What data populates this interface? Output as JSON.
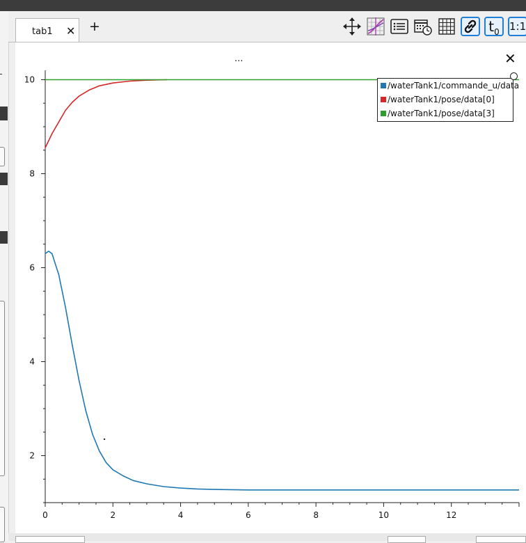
{
  "tabs": [
    {
      "label": "tab1"
    }
  ],
  "toolbar": {
    "tools": [
      {
        "icon": "move-arrows-icon",
        "active": false
      },
      {
        "icon": "curve-fit-icon",
        "active": false
      },
      {
        "icon": "list-icon",
        "active": false
      },
      {
        "icon": "calendar-clock-icon",
        "active": false
      },
      {
        "icon": "grid-icon",
        "active": false
      },
      {
        "icon": "link-icon",
        "active": true
      },
      {
        "icon": "time-offset-icon",
        "label": "t",
        "sub": "0",
        "active": true
      },
      {
        "icon": "zoom-1to1-icon",
        "label": "1:1",
        "active": true
      }
    ]
  },
  "plot": {
    "title": "...",
    "close_label": "✕"
  },
  "chart_data": {
    "type": "line",
    "xlim": [
      0,
      14
    ],
    "ylim": [
      1,
      10.2
    ],
    "xticks": [
      0,
      2,
      4,
      6,
      8,
      10,
      12
    ],
    "yticks": [
      2,
      4,
      6,
      8,
      10
    ],
    "grid": false,
    "legend_position": "top-right",
    "series": [
      {
        "name": "/waterTank1/commande_u/data",
        "color": "#1f77b4",
        "x": [
          0,
          0.1,
          0.2,
          0.4,
          0.6,
          0.8,
          1.0,
          1.2,
          1.4,
          1.6,
          1.8,
          2.0,
          2.3,
          2.6,
          3.0,
          3.5,
          4.0,
          4.5,
          5.0,
          6.0,
          8.0,
          10.0,
          12.0,
          14.0
        ],
        "values": [
          6.3,
          6.35,
          6.3,
          5.85,
          5.15,
          4.35,
          3.6,
          2.95,
          2.45,
          2.1,
          1.85,
          1.7,
          1.57,
          1.47,
          1.4,
          1.34,
          1.31,
          1.29,
          1.28,
          1.27,
          1.27,
          1.27,
          1.27,
          1.27
        ]
      },
      {
        "name": "/waterTank1/pose/data[0]",
        "color": "#d62728",
        "x": [
          0,
          0.2,
          0.4,
          0.6,
          0.8,
          1.0,
          1.3,
          1.6,
          2.0,
          2.5,
          3.0,
          3.6
        ],
        "values": [
          8.55,
          8.85,
          9.1,
          9.35,
          9.52,
          9.65,
          9.78,
          9.87,
          9.93,
          9.97,
          9.99,
          10.0
        ]
      },
      {
        "name": "/waterTank1/pose/data[3]",
        "color": "#2ca02c",
        "x": [
          0,
          14
        ],
        "values": [
          10,
          10
        ]
      }
    ]
  }
}
